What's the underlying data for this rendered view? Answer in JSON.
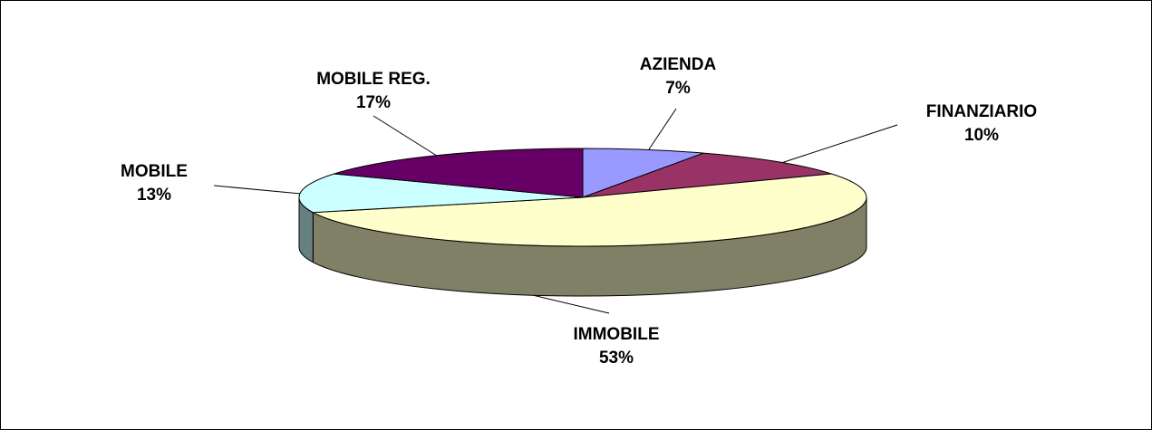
{
  "chart_data": {
    "type": "pie",
    "categories": [
      "AZIENDA",
      "FINANZIARIO",
      "IMMOBILE",
      "MOBILE",
      "MOBILE REG."
    ],
    "values": [
      7,
      10,
      53,
      13,
      17
    ],
    "value_labels": [
      "7%",
      "10%",
      "53%",
      "13%",
      "17%"
    ],
    "colors": [
      "#9999ff",
      "#993366",
      "#ffffcc",
      "#ccffff",
      "#660066"
    ]
  }
}
